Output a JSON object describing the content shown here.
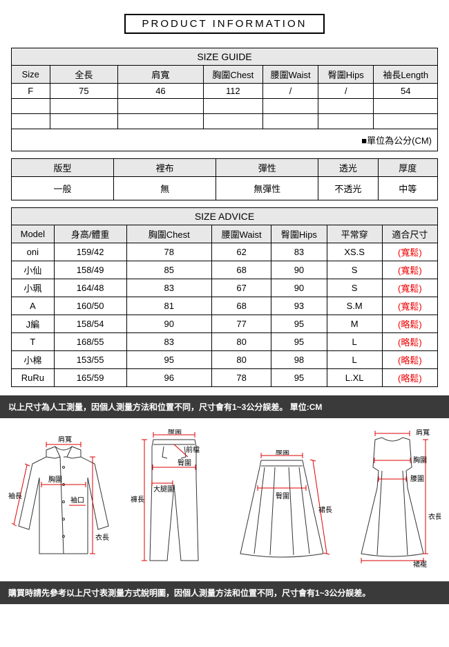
{
  "title": "PRODUCT INFORMATION",
  "sizeGuide": {
    "header": "SIZE GUIDE",
    "cols": [
      "Size",
      "全長",
      "肩寬",
      "胸圍Chest",
      "腰圍Waist",
      "臀圍Hips",
      "袖長Length"
    ],
    "rows": [
      [
        "F",
        "75",
        "46",
        "112",
        "/",
        "/",
        "54"
      ],
      [
        "",
        "",
        "",
        "",
        "",
        "",
        ""
      ],
      [
        "",
        "",
        "",
        "",
        "",
        "",
        ""
      ]
    ],
    "unit": "■單位為公分(CM)"
  },
  "attrs": {
    "cols": [
      "版型",
      "裡布",
      "彈性",
      "透光",
      "厚度"
    ],
    "vals": [
      "一般",
      "無",
      "無彈性",
      "不透光",
      "中等"
    ]
  },
  "sizeAdvice": {
    "header": "SIZE ADVICE",
    "cols": [
      "Model",
      "身高/體重",
      "胸圍Chest",
      "腰圍Waist",
      "臀圍Hips",
      "平常穿",
      "適合尺寸"
    ],
    "rows": [
      {
        "c": [
          "oni",
          "159/42",
          "78",
          "62",
          "83",
          "XS.S"
        ],
        "fit": "(寬鬆)"
      },
      {
        "c": [
          "小仙",
          "158/49",
          "85",
          "68",
          "90",
          "S"
        ],
        "fit": "(寬鬆)"
      },
      {
        "c": [
          "小珮",
          "164/48",
          "83",
          "67",
          "90",
          "S"
        ],
        "fit": "(寬鬆)"
      },
      {
        "c": [
          "A",
          "160/50",
          "81",
          "68",
          "93",
          "S.M"
        ],
        "fit": "(寬鬆)"
      },
      {
        "c": [
          "J編",
          "158/54",
          "90",
          "77",
          "95",
          "M"
        ],
        "fit": "(略鬆)"
      },
      {
        "c": [
          "T",
          "168/55",
          "83",
          "80",
          "95",
          "L"
        ],
        "fit": "(略鬆)"
      },
      {
        "c": [
          "小棉",
          "153/55",
          "95",
          "80",
          "98",
          "L"
        ],
        "fit": "(略鬆)"
      },
      {
        "c": [
          "RuRu",
          "165/59",
          "96",
          "78",
          "95",
          "L.XL"
        ],
        "fit": "(略鬆)"
      }
    ]
  },
  "note1": "以上尺寸為人工測量，因個人測量方法和位置不同，尺寸會有1~3公分誤差。 單位:CM",
  "note2": "購買時請先參考以上尺寸表測量方式說明圖，因個人測量方法和位置不同，尺寸會有1~3公分誤差。",
  "diagram": {
    "shirt": {
      "shoulder": "肩寬",
      "chest": "胸圍",
      "sleeve": "袖長",
      "cuff": "袖口",
      "length": "衣長"
    },
    "pants": {
      "waist": "腰圍",
      "front": "前檔",
      "hip": "臀圍",
      "thigh": "大腿圍",
      "length": "褲長"
    },
    "skirt": {
      "waist": "腰圍",
      "hip": "臀圍",
      "length": "裙長"
    },
    "dress": {
      "shoulder": "肩寬",
      "chest": "胸圍",
      "waist": "腰圍",
      "length": "衣長",
      "hem": "裙襬"
    }
  }
}
